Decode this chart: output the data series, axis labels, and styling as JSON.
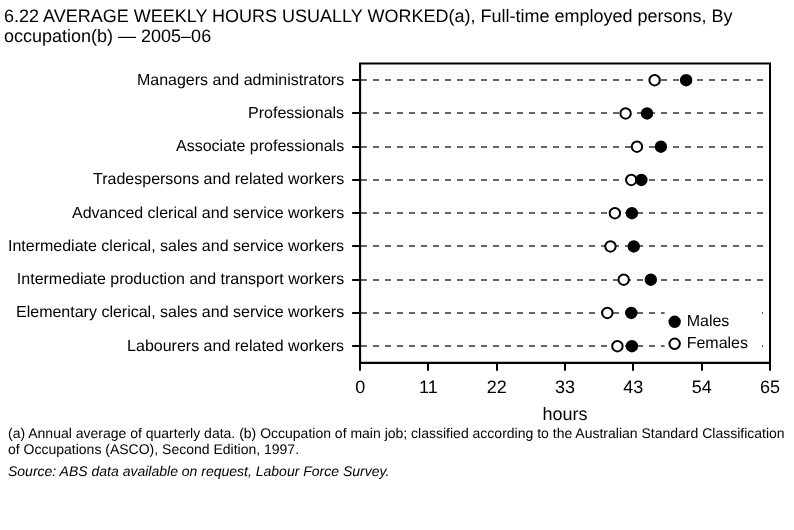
{
  "chart_data": {
    "type": "scatter",
    "title": "6.22  AVERAGE WEEKLY HOURS USUALLY WORKED(a), Full-time employed persons, By occupation(b) — 2005–06",
    "orientation": "horizontal",
    "xlabel": "hours",
    "categories": [
      "Managers and administrators",
      "Professionals",
      "Associate professionals",
      "Tradespersons and related workers",
      "Advanced clerical and service workers",
      "Intermediate clerical, sales and service workers",
      "Intermediate production and transport workers",
      "Elementary clerical, sales and service workers",
      "Labourers and related workers"
    ],
    "series": [
      {
        "name": "Males",
        "color": "#000000",
        "marker": "circle",
        "values": [
          51.7,
          45.5,
          47.7,
          44.6,
          43.1,
          43.4,
          46.1,
          43.0,
          43.1
        ]
      },
      {
        "name": "Females",
        "color": "#ffffff",
        "marker": "circle",
        "values": [
          46.7,
          42.1,
          43.9,
          43.0,
          40.4,
          39.7,
          41.8,
          39.2,
          40.8
        ]
      }
    ],
    "xlim": [
      0,
      65
    ],
    "xticks": [
      0,
      {
        "value": 10.83,
        "label": "11"
      },
      {
        "value": 21.67,
        "label": "22"
      },
      {
        "value": 32.5,
        "label": "33"
      },
      {
        "value": 43.33,
        "label": "43"
      },
      {
        "value": 54.17,
        "label": "54"
      },
      65
    ],
    "grid": "y",
    "line_style": "dashed",
    "legend": "bottom right",
    "annotations": [
      "(a) Annual average of quarterly data. (b) Occupation of main job; classified according to the Australian Standard Classification of Occupations (ASCO), Second Edition, 1997.",
      "Source: ABS data available on request, Labour Force Survey."
    ]
  }
}
